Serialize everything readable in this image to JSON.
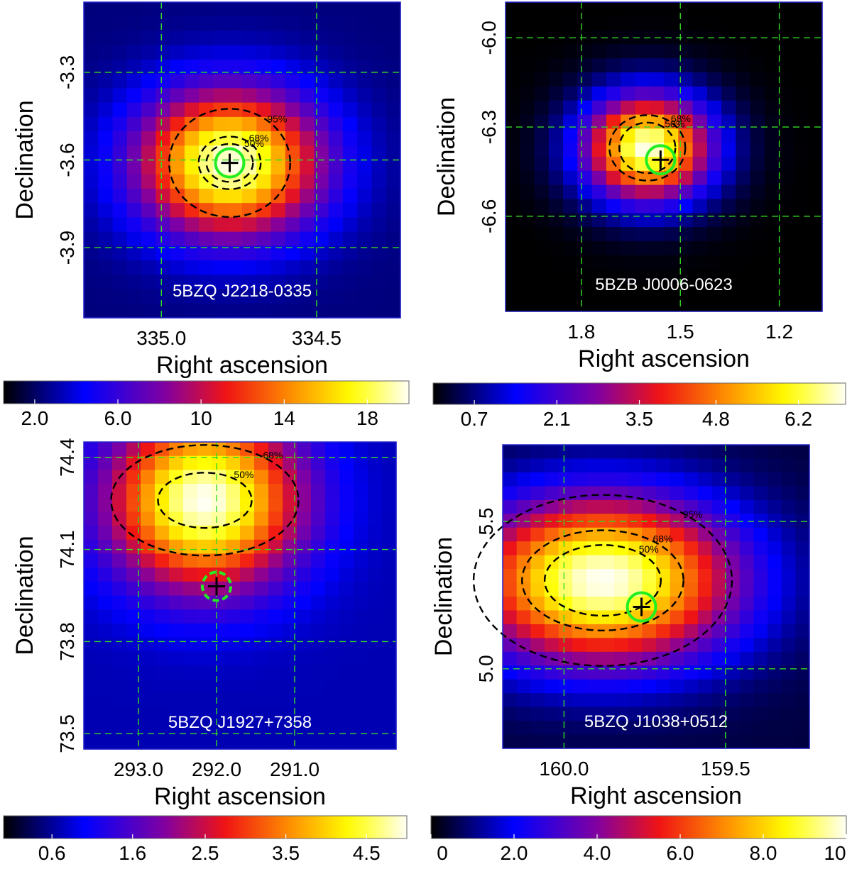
{
  "chart_data": [
    {
      "type": "heatmap",
      "source_label": "5BZQ J2218-0335",
      "xlabel": "Right ascension",
      "ylabel": "Declination",
      "xlim": [
        335.25,
        334.23
      ],
      "ylim": [
        -4.14,
        -3.06
      ],
      "xticks": [
        335.0,
        334.5
      ],
      "xtick_labels": [
        "335.0",
        "334.5"
      ],
      "yticks": [
        -3.3,
        -3.6,
        -3.9
      ],
      "ytick_labels": [
        "-3.3",
        "-3.6",
        "-3.9"
      ],
      "grid": true,
      "peak": {
        "x": 334.78,
        "y": -3.61,
        "sx": 0.2,
        "sy": 0.17
      },
      "background": 2.4,
      "falloff": 2.0,
      "source_marker": {
        "x": 334.78,
        "y": -3.61,
        "style": "solid"
      },
      "contours": [
        {
          "label": "50%",
          "rx": 0.075,
          "ry": 0.065
        },
        {
          "label": "68%",
          "rx": 0.1,
          "ry": 0.09
        },
        {
          "label": "95%",
          "rx": 0.195,
          "ry": 0.185
        }
      ],
      "colorbar": {
        "min": 0.5,
        "max": 20.0,
        "ticks": [
          "2.0",
          "6.0",
          "10",
          "14",
          "18"
        ],
        "tick_values": [
          2.0,
          6.0,
          10,
          14,
          18
        ]
      }
    },
    {
      "type": "heatmap",
      "source_label": "5BZB J0006-0623",
      "xlabel": "Right ascension",
      "ylabel": "Declination",
      "xlim": [
        2.03,
        1.07
      ],
      "ylim": [
        -6.92,
        -5.88
      ],
      "xticks": [
        1.8,
        1.5,
        1.2
      ],
      "xtick_labels": [
        "1.8",
        "1.5",
        "1.2"
      ],
      "yticks": [
        -6.0,
        -6.3,
        -6.6
      ],
      "ytick_labels": [
        "-6.0",
        "-6.3",
        "-6.6"
      ],
      "grid": true,
      "peak": {
        "x": 1.6,
        "y": -6.37,
        "sx": 0.13,
        "sy": 0.12
      },
      "background": 0.0,
      "falloff": 1.9,
      "source_marker": {
        "x": 1.56,
        "y": -6.41,
        "style": "solid"
      },
      "contours": [
        {
          "label": "50%",
          "rx": 0.085,
          "ry": 0.085
        },
        {
          "label": "68%",
          "rx": 0.115,
          "ry": 0.11
        }
      ],
      "colorbar": {
        "min": 0.0,
        "max": 7.0,
        "ticks": [
          "0.7",
          "2.1",
          "3.5",
          "4.8",
          "6.2"
        ],
        "tick_values": [
          0.7,
          2.1,
          3.5,
          4.8,
          6.2
        ]
      }
    },
    {
      "type": "heatmap",
      "source_label": "5BZQ J1927+7358",
      "xlabel": "Right ascension",
      "ylabel": "Declination",
      "xlim": [
        293.7,
        289.7
      ],
      "ylim": [
        73.45,
        74.45
      ],
      "xticks": [
        293.0,
        292.0,
        291.0
      ],
      "xtick_labels": [
        "293.0",
        "292.0",
        "291.0"
      ],
      "yticks": [
        74.4,
        74.1,
        73.8,
        73.5
      ],
      "ytick_labels": [
        "74.4",
        "74.1",
        "73.8",
        "73.5"
      ],
      "grid": true,
      "peak": {
        "x": 292.15,
        "y": 74.26,
        "sx": 0.85,
        "sy": 0.2
      },
      "background": 0.7,
      "falloff": 2.1,
      "source_marker": {
        "x": 292.0,
        "y": 73.98,
        "style": "dashed"
      },
      "contours": [
        {
          "label": "50%",
          "rx": 0.6,
          "ry": 0.09
        },
        {
          "label": "68%",
          "rx": 1.2,
          "ry": 0.18
        }
      ],
      "colorbar": {
        "min": 0.0,
        "max": 5.0,
        "ticks": [
          "0.6",
          "1.6",
          "2.5",
          "3.5",
          "4.5"
        ],
        "tick_values": [
          0.6,
          1.6,
          2.5,
          3.5,
          4.5
        ]
      }
    },
    {
      "type": "heatmap",
      "source_label": "5BZQ J1038+0512",
      "xlabel": "Right ascension",
      "ylabel": "Declination",
      "xlim": [
        160.19,
        159.24
      ],
      "ylim": [
        4.73,
        5.76
      ],
      "xticks": [
        160.0,
        159.5
      ],
      "xtick_labels": [
        "160.0",
        "159.5"
      ],
      "yticks": [
        5.5,
        5.0
      ],
      "ytick_labels": [
        "5.5",
        "5.0"
      ],
      "grid": true,
      "peak": {
        "x": 159.88,
        "y": 5.3,
        "sx": 0.29,
        "sy": 0.2
      },
      "background": 0.5,
      "falloff": 2.1,
      "source_marker": {
        "x": 159.76,
        "y": 5.21,
        "style": "solid"
      },
      "contours": [
        {
          "label": "50%",
          "rx": 0.18,
          "ry": 0.12
        },
        {
          "label": "68%",
          "rx": 0.25,
          "ry": 0.17
        },
        {
          "label": "95%",
          "rx": 0.4,
          "ry": 0.29
        }
      ],
      "colorbar": {
        "min": 0.0,
        "max": 10.0,
        "ticks": [
          "0",
          "2.0",
          "4.0",
          "6.0",
          "8.0",
          "10"
        ],
        "tick_values": [
          0,
          2.0,
          4.0,
          6.0,
          8.0,
          10
        ]
      }
    }
  ],
  "colors": {
    "grid": "#33dd22",
    "contour": "#000000",
    "source_circle": "#22ee22",
    "frame": "#2222cc",
    "label_text": "#ffffff"
  }
}
